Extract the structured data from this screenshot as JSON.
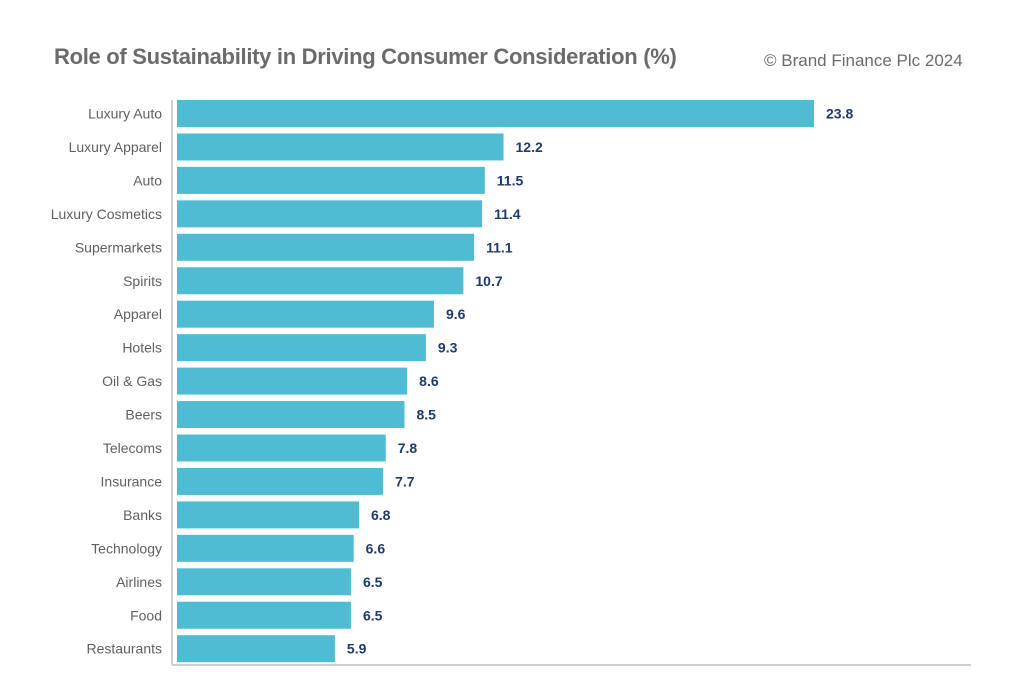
{
  "chart_data": {
    "type": "bar",
    "orientation": "horizontal",
    "title": "Role of Sustainability in Driving Consumer Consideration (%)",
    "credit": "© Brand Finance Plc 2024",
    "xlabel": "",
    "ylabel": "",
    "xlim": [
      0,
      24
    ],
    "grid": false,
    "legend": "none",
    "bar_color": "#4fbcd3",
    "value_label_color": "#1f3a6e",
    "categories": [
      "Luxury Auto",
      "Luxury Apparel",
      "Auto",
      "Luxury Cosmetics",
      "Supermarkets",
      "Spirits",
      "Apparel",
      "Hotels",
      "Oil & Gas",
      "Beers",
      "Telecoms",
      "Insurance",
      "Banks",
      "Technology",
      "Airlines",
      "Food",
      "Restaurants"
    ],
    "values": [
      23.8,
      12.2,
      11.5,
      11.4,
      11.1,
      10.7,
      9.6,
      9.3,
      8.6,
      8.5,
      7.8,
      7.7,
      6.8,
      6.6,
      6.5,
      6.5,
      5.9
    ],
    "value_labels": [
      "23.8",
      "12.2",
      "11.5",
      "11.4",
      "11.1",
      "10.7",
      "9.6",
      "9.3",
      "8.6",
      "8.5",
      "7.8",
      "7.7",
      "6.8",
      "6.6",
      "6.5",
      "6.5",
      "5.9"
    ]
  }
}
